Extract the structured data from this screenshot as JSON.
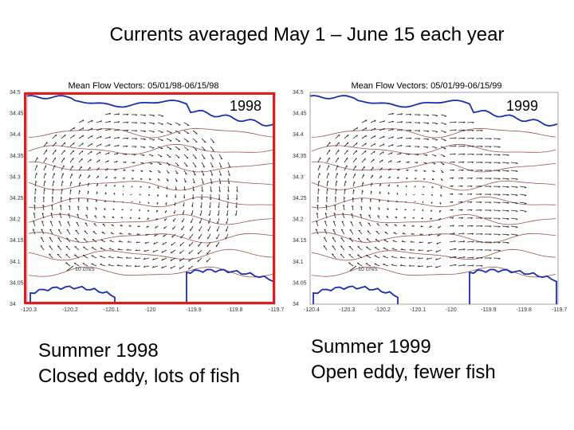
{
  "slide": {
    "title": "Currents averaged May 1 – June 15 each year"
  },
  "panels": [
    {
      "year_label": "1998",
      "map_title": "Mean Flow Vectors: 05/01/98-06/15/98",
      "scale_label": "10 cm/s",
      "y_ticks": [
        "34.5",
        "34.45",
        "34.4",
        "34.35",
        "34.3",
        "34.25",
        "34.2",
        "34.15",
        "34.1",
        "34.05",
        "34"
      ],
      "x_ticks": [
        "-120.3",
        "-120.2",
        "-120.1",
        "-120",
        "-119.9",
        "-119.8",
        "-119.7"
      ],
      "frame_color": "#e01b1b",
      "eddy": "closed"
    },
    {
      "year_label": "1999",
      "map_title": "Mean Flow Vectors: 05/01/99-06/15/99",
      "scale_label": "10 cm/s",
      "y_ticks": [
        "34.5",
        "34.45",
        "34.4",
        "34.35",
        "34.3",
        "34.25",
        "34.2",
        "34.15",
        "34.1",
        "34.05",
        "34"
      ],
      "x_ticks": [
        "-120.4",
        "-120.3",
        "-120.2",
        "-120.1",
        "-120",
        "-119.9",
        "-119.8",
        "-119.7"
      ],
      "eddy": "open"
    }
  ],
  "captions": [
    {
      "line1": "Summer 1998",
      "line2": "Closed eddy, lots of fish"
    },
    {
      "line1": "Summer 1999",
      "line2": "Open eddy, fewer fish"
    }
  ],
  "colors": {
    "coastline": "#1a2fb0",
    "bathymetry": "#a0524a",
    "vectors": "#222222"
  }
}
